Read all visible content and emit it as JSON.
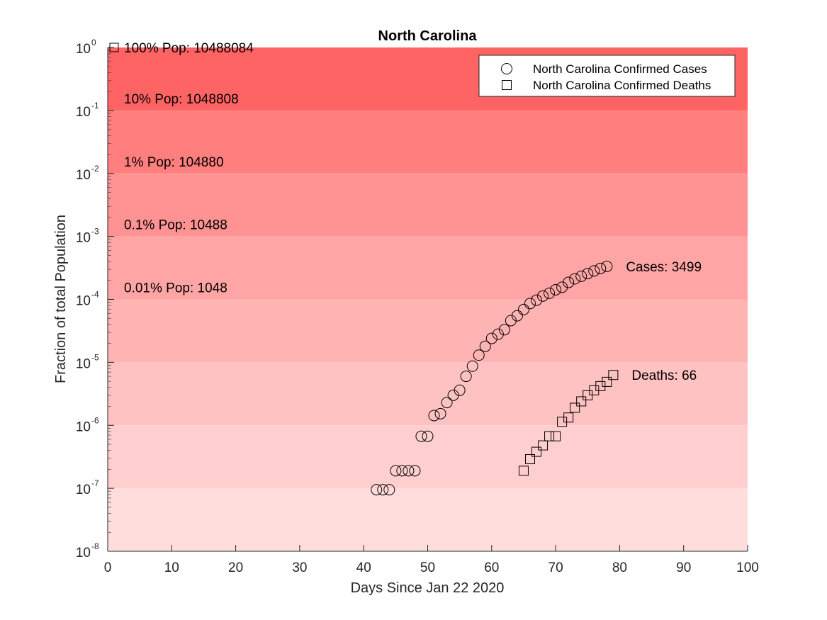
{
  "chart_data": {
    "type": "scatter",
    "title": "North Carolina",
    "xlabel": "Days Since Jan 22 2020",
    "ylabel": "Fraction of total Population",
    "y_scale": "log",
    "xlim": [
      0,
      100
    ],
    "ylim": [
      1e-08,
      1
    ],
    "x_ticks": [
      0,
      10,
      20,
      30,
      40,
      50,
      60,
      70,
      80,
      90,
      100
    ],
    "y_tick_exponents": [
      0,
      -1,
      -2,
      -3,
      -4,
      -5,
      -6,
      -7,
      -8
    ],
    "y_tick_base": "10",
    "grid": false,
    "legend_position": "top-right",
    "background_bands": [
      {
        "from": 0.1,
        "to": 1,
        "color": "#ff6464"
      },
      {
        "from": 0.01,
        "to": 0.1,
        "color": "#ff7e7e"
      },
      {
        "from": 0.001,
        "to": 0.01,
        "color": "#ff9393"
      },
      {
        "from": 0.0001,
        "to": 0.001,
        "color": "#ffa5a5"
      },
      {
        "from": 1e-05,
        "to": 0.0001,
        "color": "#ffb4b4"
      },
      {
        "from": 1e-06,
        "to": 1e-05,
        "color": "#ffc2c2"
      },
      {
        "from": 1e-07,
        "to": 1e-06,
        "color": "#ffcfcf"
      },
      {
        "from": 1e-08,
        "to": 1e-07,
        "color": "#ffdddd"
      }
    ],
    "band_labels": [
      {
        "text": "100% Pop: 10488084",
        "y": 1
      },
      {
        "text": "10% Pop: 1048808",
        "y": 0.1
      },
      {
        "text": "1% Pop: 104880",
        "y": 0.01
      },
      {
        "text": "0.1% Pop: 10488",
        "y": 0.001
      },
      {
        "text": "0.01% Pop: 1048",
        "y": 0.0001
      }
    ],
    "series": [
      {
        "name": "North Carolina Confirmed Cases",
        "marker": "circle",
        "end_label": "Cases: 3499",
        "x": [
          42,
          43,
          44,
          45,
          46,
          47,
          48,
          49,
          50,
          51,
          52,
          53,
          54,
          55,
          56,
          57,
          58,
          59,
          60,
          61,
          62,
          63,
          64,
          65,
          66,
          67,
          68,
          69,
          70,
          71,
          72,
          73,
          74,
          75,
          76,
          77,
          78
        ],
        "y": [
          9.5e-08,
          9.5e-08,
          9.5e-08,
          1.9e-07,
          1.9e-07,
          1.9e-07,
          1.9e-07,
          6.7e-07,
          6.7e-07,
          1.43e-06,
          1.53e-06,
          2.3e-06,
          3e-06,
          3.6e-06,
          6e-06,
          8.7e-06,
          1.3e-05,
          1.8e-05,
          2.4e-05,
          2.8e-05,
          3.3e-05,
          4.6e-05,
          5.5e-05,
          6.9e-05,
          8.6e-05,
          9.7e-05,
          0.000113,
          0.000125,
          0.000142,
          0.000156,
          0.000186,
          0.000212,
          0.000233,
          0.000257,
          0.000283,
          0.00031,
          0.000334
        ]
      },
      {
        "name": "North Carolina Confirmed Deaths",
        "marker": "square",
        "end_label": "Deaths: 66",
        "x": [
          65,
          66,
          67,
          68,
          69,
          70,
          71,
          72,
          73,
          74,
          75,
          76,
          77,
          78,
          79
        ],
        "y": [
          1.9e-07,
          2.9e-07,
          3.8e-07,
          4.8e-07,
          6.7e-07,
          6.7e-07,
          1.14e-06,
          1.33e-06,
          1.9e-06,
          2.4e-06,
          3e-06,
          3.6e-06,
          4.2e-06,
          4.9e-06,
          6.3e-06
        ]
      }
    ]
  }
}
